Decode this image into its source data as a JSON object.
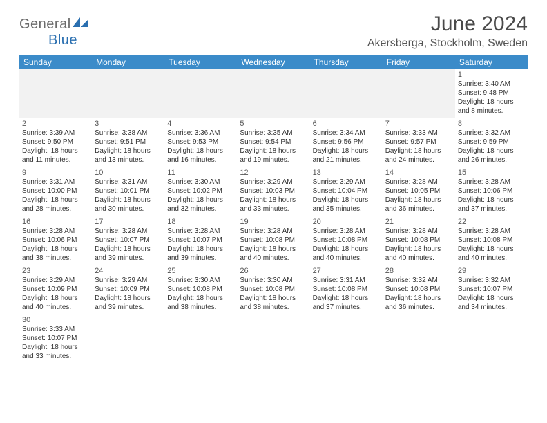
{
  "brand": {
    "name_part1": "General",
    "name_part2": "Blue"
  },
  "title": "June 2024",
  "location": "Akersberga, Stockholm, Sweden",
  "header_bg": "#3b8bc9",
  "days_of_week": [
    "Sunday",
    "Monday",
    "Tuesday",
    "Wednesday",
    "Thursday",
    "Friday",
    "Saturday"
  ],
  "weeks": [
    [
      null,
      null,
      null,
      null,
      null,
      null,
      {
        "n": "1",
        "sr": "3:40 AM",
        "ss": "9:48 PM",
        "dl": "18 hours and 8 minutes."
      }
    ],
    [
      {
        "n": "2",
        "sr": "3:39 AM",
        "ss": "9:50 PM",
        "dl": "18 hours and 11 minutes."
      },
      {
        "n": "3",
        "sr": "3:38 AM",
        "ss": "9:51 PM",
        "dl": "18 hours and 13 minutes."
      },
      {
        "n": "4",
        "sr": "3:36 AM",
        "ss": "9:53 PM",
        "dl": "18 hours and 16 minutes."
      },
      {
        "n": "5",
        "sr": "3:35 AM",
        "ss": "9:54 PM",
        "dl": "18 hours and 19 minutes."
      },
      {
        "n": "6",
        "sr": "3:34 AM",
        "ss": "9:56 PM",
        "dl": "18 hours and 21 minutes."
      },
      {
        "n": "7",
        "sr": "3:33 AM",
        "ss": "9:57 PM",
        "dl": "18 hours and 24 minutes."
      },
      {
        "n": "8",
        "sr": "3:32 AM",
        "ss": "9:59 PM",
        "dl": "18 hours and 26 minutes."
      }
    ],
    [
      {
        "n": "9",
        "sr": "3:31 AM",
        "ss": "10:00 PM",
        "dl": "18 hours and 28 minutes."
      },
      {
        "n": "10",
        "sr": "3:31 AM",
        "ss": "10:01 PM",
        "dl": "18 hours and 30 minutes."
      },
      {
        "n": "11",
        "sr": "3:30 AM",
        "ss": "10:02 PM",
        "dl": "18 hours and 32 minutes."
      },
      {
        "n": "12",
        "sr": "3:29 AM",
        "ss": "10:03 PM",
        "dl": "18 hours and 33 minutes."
      },
      {
        "n": "13",
        "sr": "3:29 AM",
        "ss": "10:04 PM",
        "dl": "18 hours and 35 minutes."
      },
      {
        "n": "14",
        "sr": "3:28 AM",
        "ss": "10:05 PM",
        "dl": "18 hours and 36 minutes."
      },
      {
        "n": "15",
        "sr": "3:28 AM",
        "ss": "10:06 PM",
        "dl": "18 hours and 37 minutes."
      }
    ],
    [
      {
        "n": "16",
        "sr": "3:28 AM",
        "ss": "10:06 PM",
        "dl": "18 hours and 38 minutes."
      },
      {
        "n": "17",
        "sr": "3:28 AM",
        "ss": "10:07 PM",
        "dl": "18 hours and 39 minutes."
      },
      {
        "n": "18",
        "sr": "3:28 AM",
        "ss": "10:07 PM",
        "dl": "18 hours and 39 minutes."
      },
      {
        "n": "19",
        "sr": "3:28 AM",
        "ss": "10:08 PM",
        "dl": "18 hours and 40 minutes."
      },
      {
        "n": "20",
        "sr": "3:28 AM",
        "ss": "10:08 PM",
        "dl": "18 hours and 40 minutes."
      },
      {
        "n": "21",
        "sr": "3:28 AM",
        "ss": "10:08 PM",
        "dl": "18 hours and 40 minutes."
      },
      {
        "n": "22",
        "sr": "3:28 AM",
        "ss": "10:08 PM",
        "dl": "18 hours and 40 minutes."
      }
    ],
    [
      {
        "n": "23",
        "sr": "3:29 AM",
        "ss": "10:09 PM",
        "dl": "18 hours and 40 minutes."
      },
      {
        "n": "24",
        "sr": "3:29 AM",
        "ss": "10:09 PM",
        "dl": "18 hours and 39 minutes."
      },
      {
        "n": "25",
        "sr": "3:30 AM",
        "ss": "10:08 PM",
        "dl": "18 hours and 38 minutes."
      },
      {
        "n": "26",
        "sr": "3:30 AM",
        "ss": "10:08 PM",
        "dl": "18 hours and 38 minutes."
      },
      {
        "n": "27",
        "sr": "3:31 AM",
        "ss": "10:08 PM",
        "dl": "18 hours and 37 minutes."
      },
      {
        "n": "28",
        "sr": "3:32 AM",
        "ss": "10:08 PM",
        "dl": "18 hours and 36 minutes."
      },
      {
        "n": "29",
        "sr": "3:32 AM",
        "ss": "10:07 PM",
        "dl": "18 hours and 34 minutes."
      }
    ],
    [
      {
        "n": "30",
        "sr": "3:33 AM",
        "ss": "10:07 PM",
        "dl": "18 hours and 33 minutes."
      },
      null,
      null,
      null,
      null,
      null,
      null
    ]
  ],
  "labels": {
    "sunrise": "Sunrise:",
    "sunset": "Sunset:",
    "daylight": "Daylight:"
  }
}
